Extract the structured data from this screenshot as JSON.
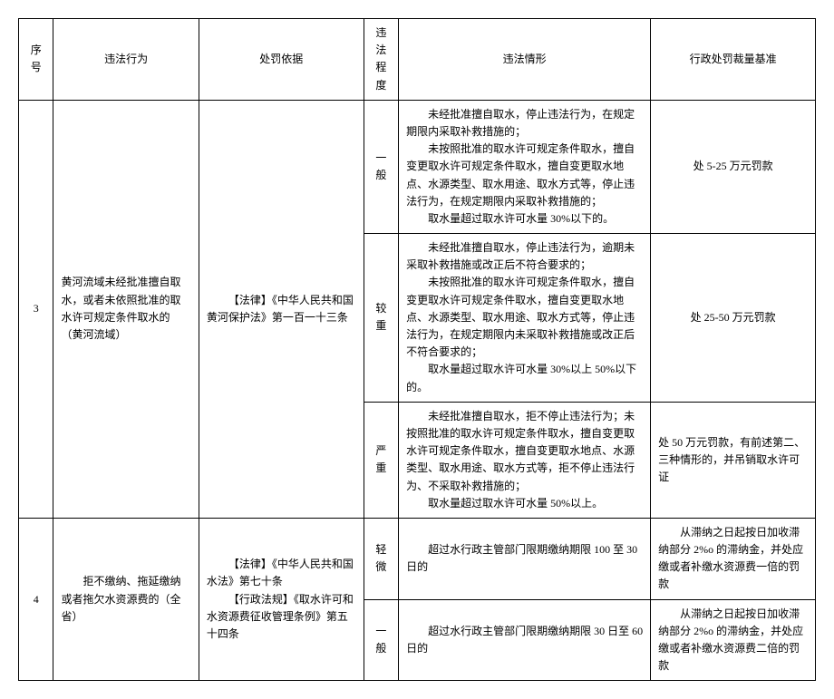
{
  "headers": {
    "seq": "序号",
    "act": "违法行为",
    "basis": "处罚依据",
    "degree": "违法程度",
    "situation": "违法情形",
    "penalty": "行政处罚裁量基准"
  },
  "rows": [
    {
      "seq": "3",
      "act": "黄河流域未经批准擅自取水，或者未依照批准的取水许可规定条件取水的（黄河流域）",
      "basis": "【法律】《中华人民共和国黄河保护法》第一百一十三条",
      "levels": [
        {
          "degree": "一般",
          "situation_lines": [
            "未经批准擅自取水，停止违法行为，在规定期限内采取补救措施的；",
            "未按照批准的取水许可规定条件取水，擅自变更取水许可规定条件取水，擅自变更取水地点、水源类型、取水用途、取水方式等，停止违法行为，在规定期限内采取补救措施的；",
            "取水量超过取水许可水量 30%以下的。"
          ],
          "penalty": "处 5-25 万元罚款"
        },
        {
          "degree": "较重",
          "situation_lines": [
            "未经批准擅自取水，停止违法行为，逾期未采取补救措施或改正后不符合要求的；",
            "未按照批准的取水许可规定条件取水，擅自变更取水许可规定条件取水，擅自变更取水地点、水源类型、取水用途、取水方式等，停止违法行为，在规定期限内未采取补救措施或改正后不符合要求的；",
            "取水量超过取水许可水量 30%以上 50%以下的。"
          ],
          "penalty": "处 25-50 万元罚款"
        },
        {
          "degree": "严重",
          "situation_lines": [
            "未经批准擅自取水，拒不停止违法行为；未按照批准的取水许可规定条件取水，擅自变更取水许可规定条件取水，擅自变更取水地点、水源类型、取水用途、取水方式等，拒不停止违法行为、不采取补救措施的；",
            "取水量超过取水许可水量 50%以上。"
          ],
          "penalty": "处 50 万元罚款，有前述第二、三种情形的，并吊销取水许可证"
        }
      ]
    },
    {
      "seq": "4",
      "act": "拒不缴纳、拖延缴纳或者拖欠水资源费的（全省）",
      "basis_lines": [
        "【法律】《中华人民共和国水法》第七十条",
        "【行政法规】《取水许可和水资源费征收管理条例》第五十四条"
      ],
      "levels": [
        {
          "degree": "轻微",
          "situation_plain": "超过水行政主管部门限期缴纳期限 100 至 30 日的",
          "penalty": "从滞纳之日起按日加收滞纳部分 2%o 的滞纳金，并处应缴或者补缴水资源费一倍的罚款"
        },
        {
          "degree": "一般",
          "situation_plain": "超过水行政主管部门限期缴纳期限 30 日至 60 日的",
          "penalty": "从滞纳之日起按日加收滞纳部分 2%o 的滞纳金，并处应缴或者补缴水资源费二倍的罚款"
        }
      ]
    }
  ]
}
